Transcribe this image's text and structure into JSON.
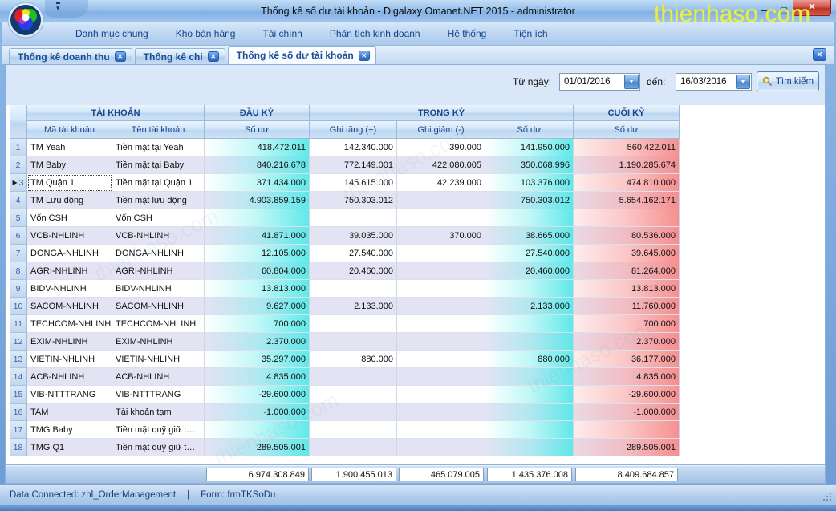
{
  "window": {
    "title": "Thống kê số dư tài khoản - Digalaxy Omanet.NET 2015 - administrator"
  },
  "watermark": {
    "text": "thienhaso.com"
  },
  "icons": {
    "minimize": "—",
    "maximize": "▢",
    "close": "✕",
    "dropdown": "▼",
    "row_arrow": "▶"
  },
  "colors": {
    "accent_navy": "#15428b",
    "cyan_balance": "#5ae8e8",
    "pink_closing": "#f68a8a",
    "close_red": "#c83c3c",
    "watermark_yellow": "#edf141"
  },
  "menu": {
    "items": [
      "Danh mục chung",
      "Kho bán hàng",
      "Tài chính",
      "Phân tích kinh doanh",
      "Hệ thống",
      "Tiện ích"
    ]
  },
  "tabs": [
    {
      "label": "Thống kê doanh thu",
      "active": false
    },
    {
      "label": "Thống kê chi",
      "active": false
    },
    {
      "label": "Thống kê số dư tài khoản",
      "active": true
    }
  ],
  "filter": {
    "from_label": "Từ ngày:",
    "from_value": "01/01/2016",
    "to_label": "đến:",
    "to_value": "16/03/2016",
    "search_label": "Tìm kiếm"
  },
  "grid": {
    "groups": [
      "TÀI KHOẢN",
      "ĐẦU KỲ",
      "TRONG KỲ",
      "CUỐI KỲ"
    ],
    "columns": [
      "Mã tài khoản",
      "Tên tài khoản",
      "Số dư",
      "Ghi tăng (+)",
      "Ghi giảm (-)",
      "Số dư",
      "Số dư"
    ],
    "selected_row": 3,
    "rows": [
      {
        "num": 1,
        "code": "TM Yeah",
        "name": "Tiền mặt tại Yeah",
        "opening": "418.472.011",
        "increase": "142.340.000",
        "decrease": "390.000",
        "period": "141.950.000",
        "closing": "560.422.011"
      },
      {
        "num": 2,
        "code": "TM Baby",
        "name": "Tiền mặt tại Baby",
        "opening": "840.216.678",
        "increase": "772.149.001",
        "decrease": "422.080.005",
        "period": "350.068.996",
        "closing": "1.190.285.674"
      },
      {
        "num": 3,
        "code": "TM Quận 1",
        "name": "Tiền mặt tại Quận 1",
        "opening": "371.434.000",
        "increase": "145.615.000",
        "decrease": "42.239.000",
        "period": "103.376.000",
        "closing": "474.810.000"
      },
      {
        "num": 4,
        "code": "TM Lưu động",
        "name": "Tiền mặt lưu động",
        "opening": "4.903.859.159",
        "increase": "750.303.012",
        "decrease": "",
        "period": "750.303.012",
        "closing": "5.654.162.171"
      },
      {
        "num": 5,
        "code": "Vốn CSH",
        "name": "Vốn CSH",
        "opening": "",
        "increase": "",
        "decrease": "",
        "period": "",
        "closing": ""
      },
      {
        "num": 6,
        "code": "VCB-NHLINH",
        "name": "VCB-NHLINH",
        "opening": "41.871.000",
        "increase": "39.035.000",
        "decrease": "370.000",
        "period": "38.665.000",
        "closing": "80.536.000"
      },
      {
        "num": 7,
        "code": "DONGA-NHLINH",
        "name": "DONGA-NHLINH",
        "opening": "12.105.000",
        "increase": "27.540.000",
        "decrease": "",
        "period": "27.540.000",
        "closing": "39.645.000"
      },
      {
        "num": 8,
        "code": "AGRI-NHLINH",
        "name": "AGRI-NHLINH",
        "opening": "60.804.000",
        "increase": "20.460.000",
        "decrease": "",
        "period": "20.460.000",
        "closing": "81.264.000"
      },
      {
        "num": 9,
        "code": "BIDV-NHLINH",
        "name": "BIDV-NHLINH",
        "opening": "13.813.000",
        "increase": "",
        "decrease": "",
        "period": "",
        "closing": "13.813.000"
      },
      {
        "num": 10,
        "code": "SACOM-NHLINH",
        "name": "SACOM-NHLINH",
        "opening": "9.627.000",
        "increase": "2.133.000",
        "decrease": "",
        "period": "2.133.000",
        "closing": "11.760.000"
      },
      {
        "num": 11,
        "code": "TECHCOM-NHLINH",
        "name": "TECHCOM-NHLINH",
        "opening": "700.000",
        "increase": "",
        "decrease": "",
        "period": "",
        "closing": "700.000"
      },
      {
        "num": 12,
        "code": "EXIM-NHLINH",
        "name": "EXIM-NHLINH",
        "opening": "2.370.000",
        "increase": "",
        "decrease": "",
        "period": "",
        "closing": "2.370.000"
      },
      {
        "num": 13,
        "code": "VIETIN-NHLINH",
        "name": "VIETIN-NHLINH",
        "opening": "35.297.000",
        "increase": "880.000",
        "decrease": "",
        "period": "880.000",
        "closing": "36.177.000"
      },
      {
        "num": 14,
        "code": "ACB-NHLINH",
        "name": "ACB-NHLINH",
        "opening": "4.835.000",
        "increase": "",
        "decrease": "",
        "period": "",
        "closing": "4.835.000"
      },
      {
        "num": 15,
        "code": "VIB-NTTTRANG",
        "name": "VIB-NTTTRANG",
        "opening": "-29.600.000",
        "increase": "",
        "decrease": "",
        "period": "",
        "closing": "-29.600.000"
      },
      {
        "num": 16,
        "code": "TAM",
        "name": "Tài khoản tạm",
        "opening": "-1.000.000",
        "increase": "",
        "decrease": "",
        "period": "",
        "closing": "-1.000.000"
      },
      {
        "num": 17,
        "code": "TMG Baby",
        "name": "Tiền mặt quỹ giữ t…",
        "opening": "",
        "increase": "",
        "decrease": "",
        "period": "",
        "closing": ""
      },
      {
        "num": 18,
        "code": "TMG Q1",
        "name": "Tiền mặt quỹ giữ t…",
        "opening": "289.505.001",
        "increase": "",
        "decrease": "",
        "period": "",
        "closing": "289.505.001"
      }
    ],
    "totals": [
      "6.974.308.849",
      "1.900.455.013",
      "465.079.005",
      "1.435.376.008",
      "8.409.684.857"
    ]
  },
  "status": {
    "connection": "Data Connected: zhl_OrderManagement",
    "separator": "|",
    "form": "Form: frmTKSoDu"
  }
}
